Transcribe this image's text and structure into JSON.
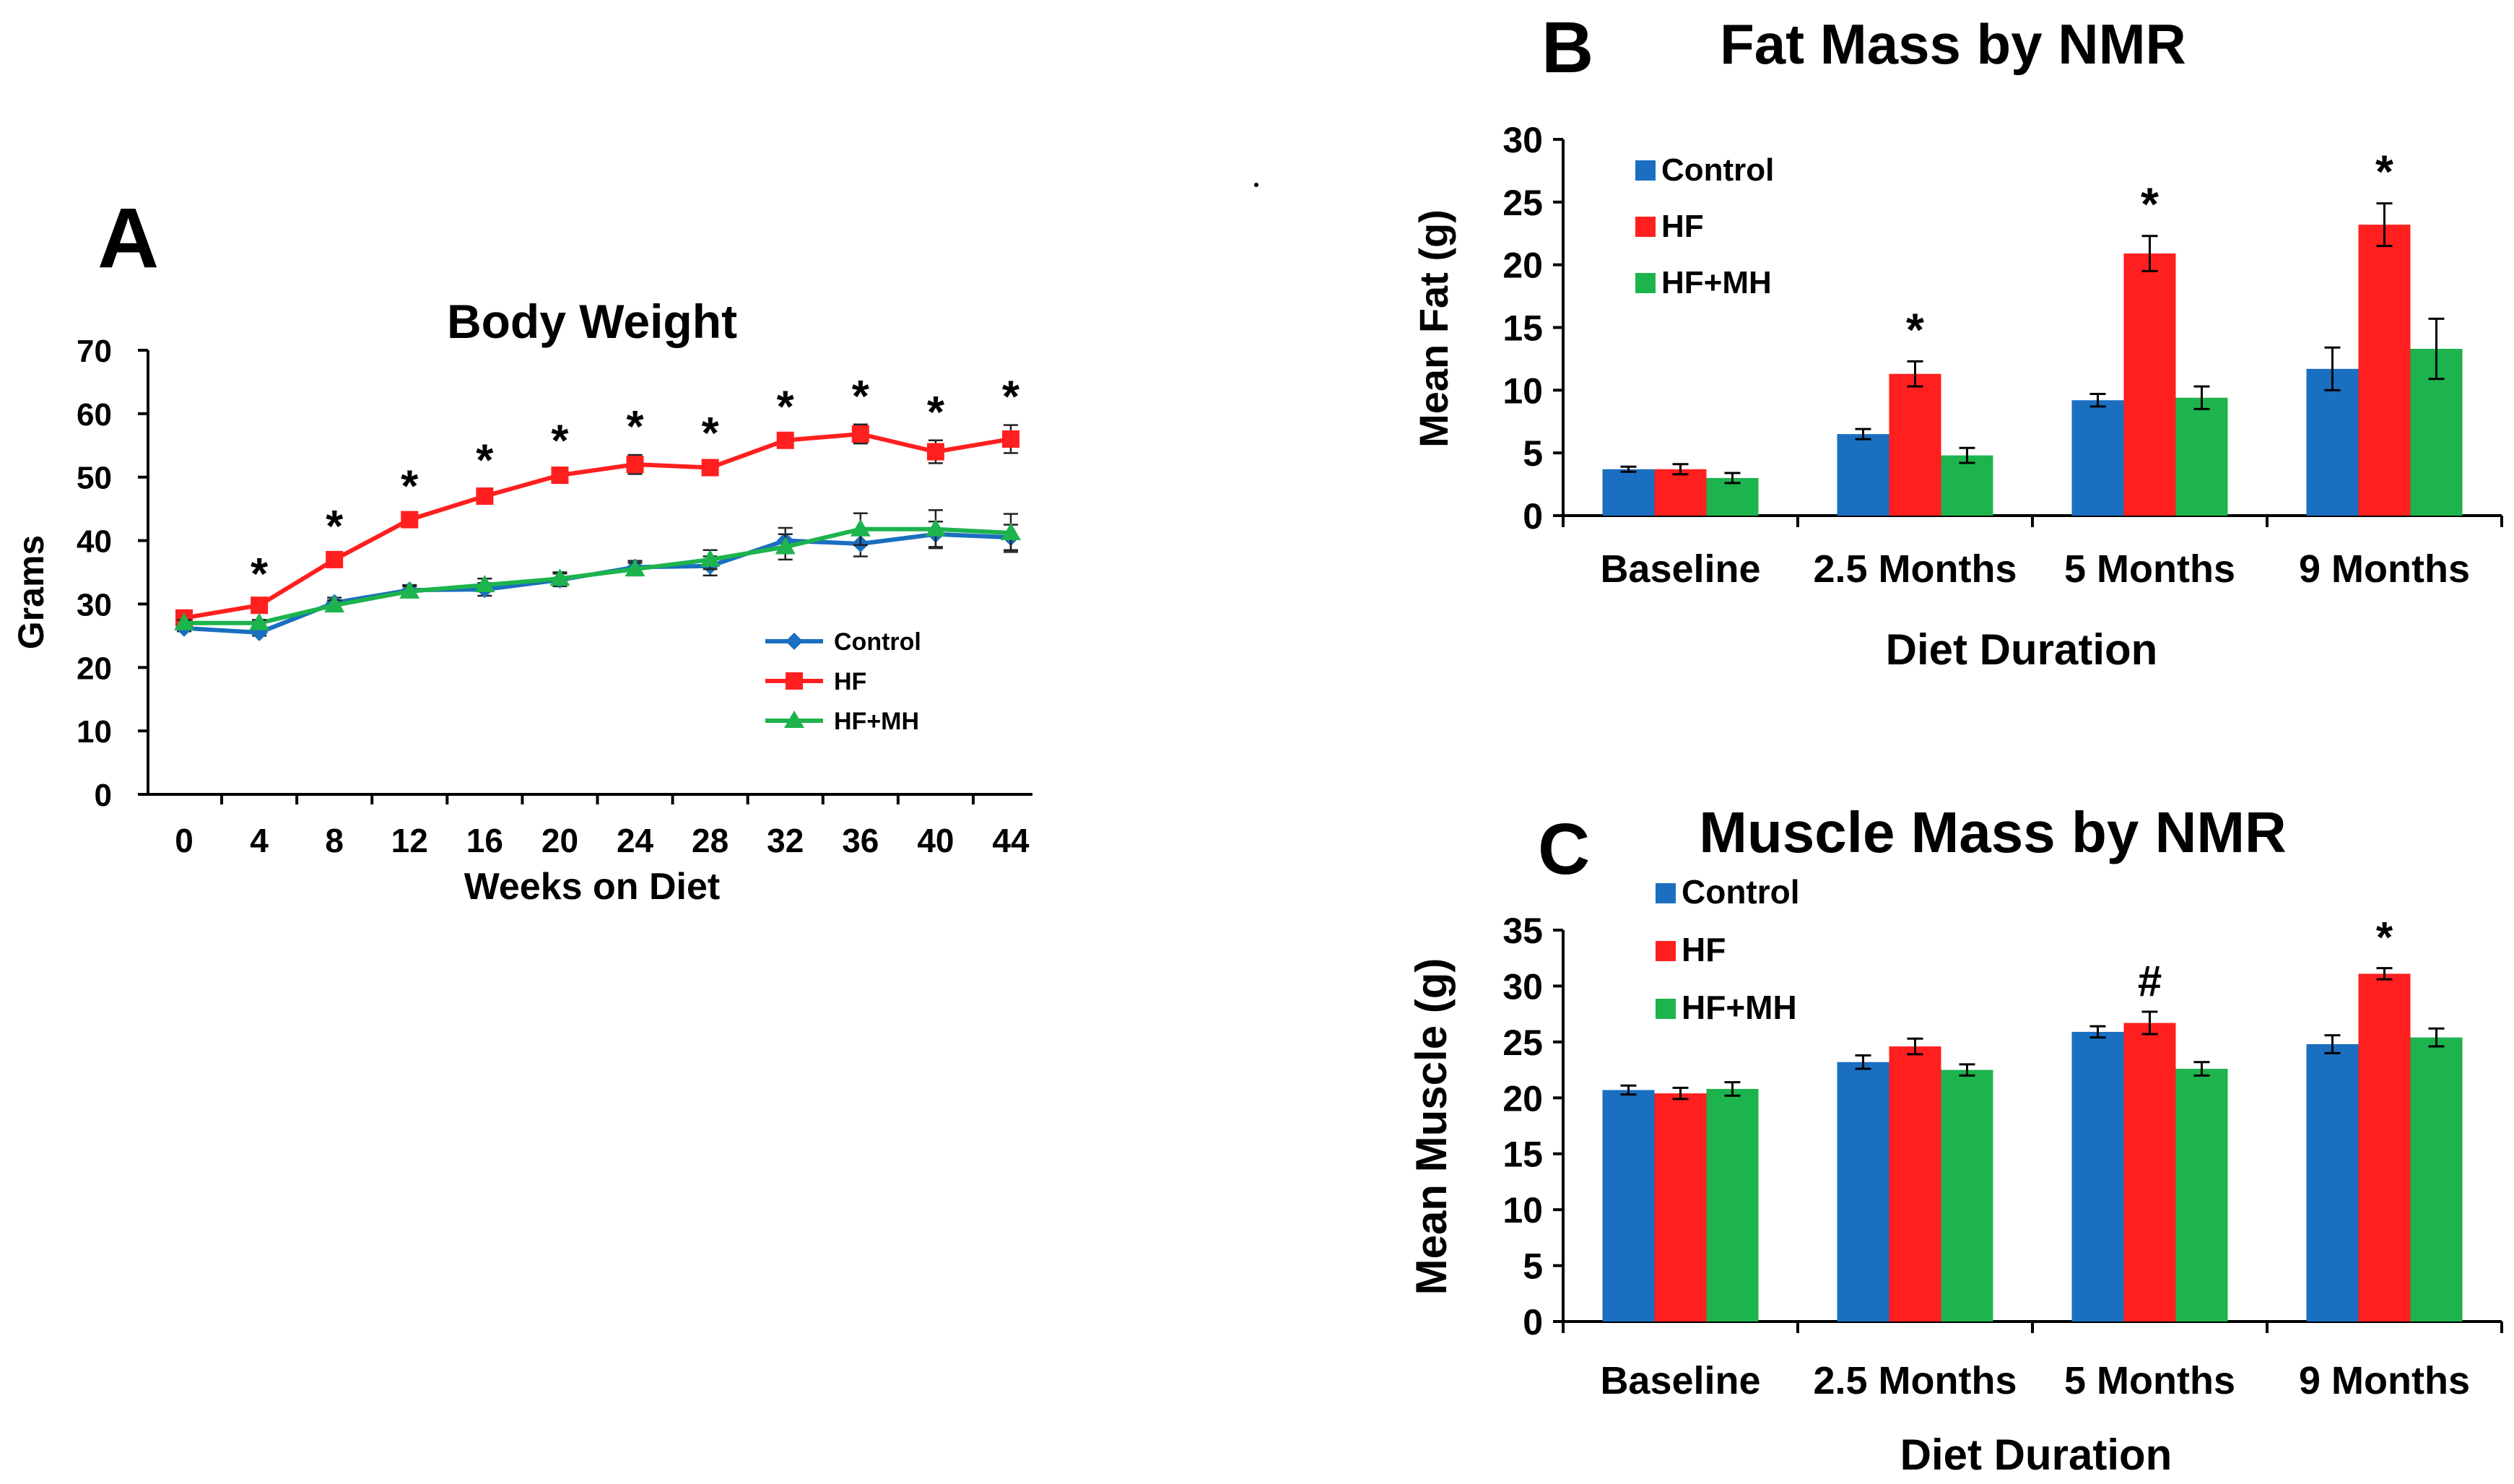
{
  "colors": {
    "control": "#1a6fc0",
    "hf": "#ff1f1f",
    "hfmh": "#1db34d"
  },
  "chart_data": [
    {
      "id": "A",
      "type": "line",
      "panel_label": "A",
      "title": "Body Weight",
      "xlabel": "Weeks on Diet",
      "ylabel": "Grams",
      "ylim": [
        0,
        70
      ],
      "yticks": [
        0,
        10,
        20,
        30,
        40,
        50,
        60,
        70
      ],
      "x": [
        0,
        4,
        8,
        12,
        16,
        20,
        24,
        28,
        32,
        36,
        40,
        44
      ],
      "xtick_labels": [
        "0",
        "4",
        "8",
        "12",
        "16",
        "20",
        "24",
        "28",
        "32",
        "36",
        "40",
        "44"
      ],
      "series": [
        {
          "name": "Control",
          "key": "control",
          "marker": "diamond",
          "values": [
            26.2,
            25.5,
            30.2,
            32.2,
            32.3,
            33.8,
            35.8,
            36.0,
            40.0,
            39.5,
            41.0,
            40.5
          ],
          "errors": [
            0.5,
            0.5,
            0.8,
            0.8,
            1.0,
            1.0,
            1.0,
            1.5,
            2.0,
            2.0,
            2.0,
            2.0
          ]
        },
        {
          "name": "HF",
          "key": "hf",
          "marker": "square",
          "values": [
            27.8,
            29.8,
            37.0,
            43.3,
            47.0,
            50.3,
            52.0,
            51.5,
            55.8,
            56.8,
            54.0,
            56.0
          ],
          "errors": [
            0.5,
            0.5,
            0.8,
            0.8,
            1.2,
            1.0,
            1.5,
            1.0,
            0.8,
            1.5,
            1.8,
            2.2
          ]
        },
        {
          "name": "HF+MH",
          "key": "hfmh",
          "marker": "triangle",
          "values": [
            27.0,
            27.0,
            29.8,
            32.0,
            33.0,
            34.0,
            35.5,
            37.0,
            39.0,
            41.8,
            41.8,
            41.2
          ],
          "errors": [
            0.5,
            0.5,
            0.8,
            0.8,
            1.0,
            1.0,
            1.0,
            1.5,
            2.0,
            2.5,
            3.0,
            3.0
          ]
        }
      ],
      "significance": [
        {
          "x": 4,
          "mark": "*"
        },
        {
          "x": 8,
          "mark": "*"
        },
        {
          "x": 12,
          "mark": "*"
        },
        {
          "x": 16,
          "mark": "*"
        },
        {
          "x": 20,
          "mark": "*"
        },
        {
          "x": 24,
          "mark": "*"
        },
        {
          "x": 28,
          "mark": "*"
        },
        {
          "x": 32,
          "mark": "*"
        },
        {
          "x": 36,
          "mark": "*"
        },
        {
          "x": 40,
          "mark": "*"
        },
        {
          "x": 44,
          "mark": "*"
        }
      ],
      "legend": [
        "Control",
        "HF",
        "HF+MH"
      ],
      "legend_position": "right"
    },
    {
      "id": "B",
      "type": "bar",
      "panel_label": "B",
      "title": "Fat Mass by NMR",
      "xlabel": "Diet Duration",
      "ylabel": "Mean Fat (g)",
      "ylim": [
        0,
        30
      ],
      "yticks": [
        0,
        5,
        10,
        15,
        20,
        25,
        30
      ],
      "categories": [
        "Baseline",
        "2.5 Months",
        "5 Months",
        "9 Months"
      ],
      "series": [
        {
          "name": "Control",
          "key": "control",
          "values": [
            3.7,
            6.5,
            9.2,
            11.7
          ],
          "errors": [
            0.2,
            0.4,
            0.5,
            1.7
          ]
        },
        {
          "name": "HF",
          "key": "hf",
          "values": [
            3.7,
            11.3,
            20.9,
            23.2
          ],
          "errors": [
            0.4,
            1.0,
            1.4,
            1.7
          ]
        },
        {
          "name": "HF+MH",
          "key": "hfmh",
          "values": [
            3.0,
            4.8,
            9.4,
            13.3
          ],
          "errors": [
            0.4,
            0.6,
            0.9,
            2.4
          ]
        }
      ],
      "significance": [
        {
          "category": 1,
          "series": 1,
          "mark": "*"
        },
        {
          "category": 2,
          "series": 1,
          "mark": "*"
        },
        {
          "category": 3,
          "series": 1,
          "mark": "*"
        }
      ],
      "legend": [
        "Control",
        "HF",
        "HF+MH"
      ],
      "legend_position": "top-left"
    },
    {
      "id": "C",
      "type": "bar",
      "panel_label": "C",
      "title": "Muscle Mass by NMR",
      "xlabel": "Diet Duration",
      "ylabel": "Mean Muscle (g)",
      "ylim": [
        0,
        35
      ],
      "yticks": [
        0,
        5,
        10,
        15,
        20,
        25,
        30,
        35
      ],
      "categories": [
        "Baseline",
        "2.5 Months",
        "5 Months",
        "9 Months"
      ],
      "series": [
        {
          "name": "Control",
          "key": "control",
          "values": [
            20.7,
            23.2,
            25.9,
            24.8
          ],
          "errors": [
            0.4,
            0.6,
            0.5,
            0.8
          ]
        },
        {
          "name": "HF",
          "key": "hf",
          "values": [
            20.4,
            24.6,
            26.7,
            31.1
          ],
          "errors": [
            0.5,
            0.7,
            1.0,
            0.5
          ]
        },
        {
          "name": "HF+MH",
          "key": "hfmh",
          "values": [
            20.8,
            22.5,
            22.6,
            25.4
          ],
          "errors": [
            0.6,
            0.5,
            0.6,
            0.8
          ]
        }
      ],
      "significance": [
        {
          "category": 2,
          "series": 1,
          "mark": "#"
        },
        {
          "category": 3,
          "series": 1,
          "mark": "*"
        }
      ],
      "legend": [
        "Control",
        "HF",
        "HF+MH"
      ],
      "legend_position": "top-left"
    }
  ]
}
